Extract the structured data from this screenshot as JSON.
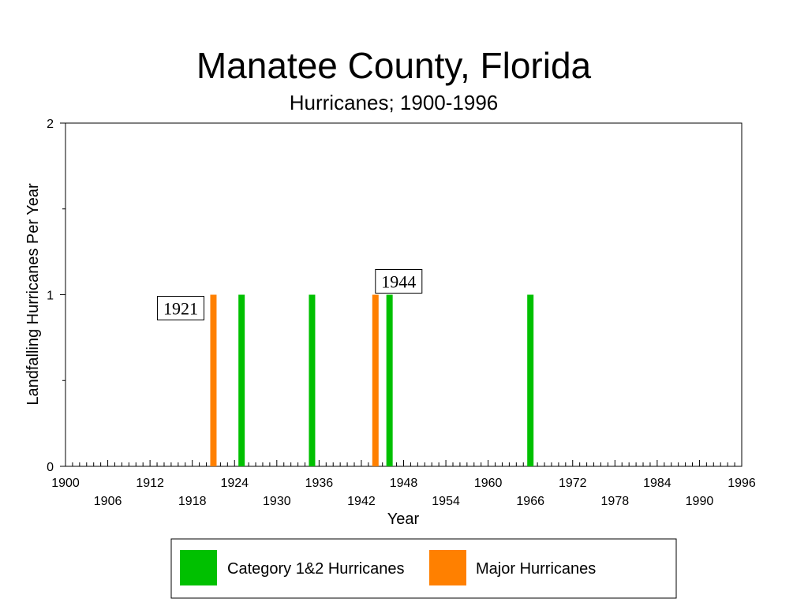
{
  "chart_data": {
    "type": "bar",
    "title": "Manatee County, Florida",
    "subtitle": "Hurricanes;  1900-1996",
    "xlabel": "Year",
    "ylabel": "Landfalling Hurricanes Per Year",
    "xlim": [
      1900,
      1996
    ],
    "ylim": [
      0,
      2
    ],
    "y_ticks": [
      0,
      1,
      2
    ],
    "x_ticks_row1": [
      1900,
      1912,
      1924,
      1936,
      1948,
      1960,
      1972,
      1984,
      1996
    ],
    "x_ticks_row2": [
      1906,
      1918,
      1930,
      1942,
      1954,
      1966,
      1978,
      1990
    ],
    "grid": false,
    "legend_placement": "bottom",
    "series": [
      {
        "name": "Category 1&2 Hurricanes",
        "color": "#00c000",
        "x": [
          1925,
          1935,
          1946,
          1966
        ],
        "values": [
          1,
          1,
          1,
          1
        ]
      },
      {
        "name": "Major Hurricanes",
        "color": "#ff8000",
        "x": [
          1921,
          1944
        ],
        "values": [
          1,
          1
        ]
      }
    ],
    "annotations": [
      {
        "text": "1921",
        "x": 1921,
        "y": 1
      },
      {
        "text": "1944",
        "x": 1944,
        "y": 1
      }
    ]
  }
}
